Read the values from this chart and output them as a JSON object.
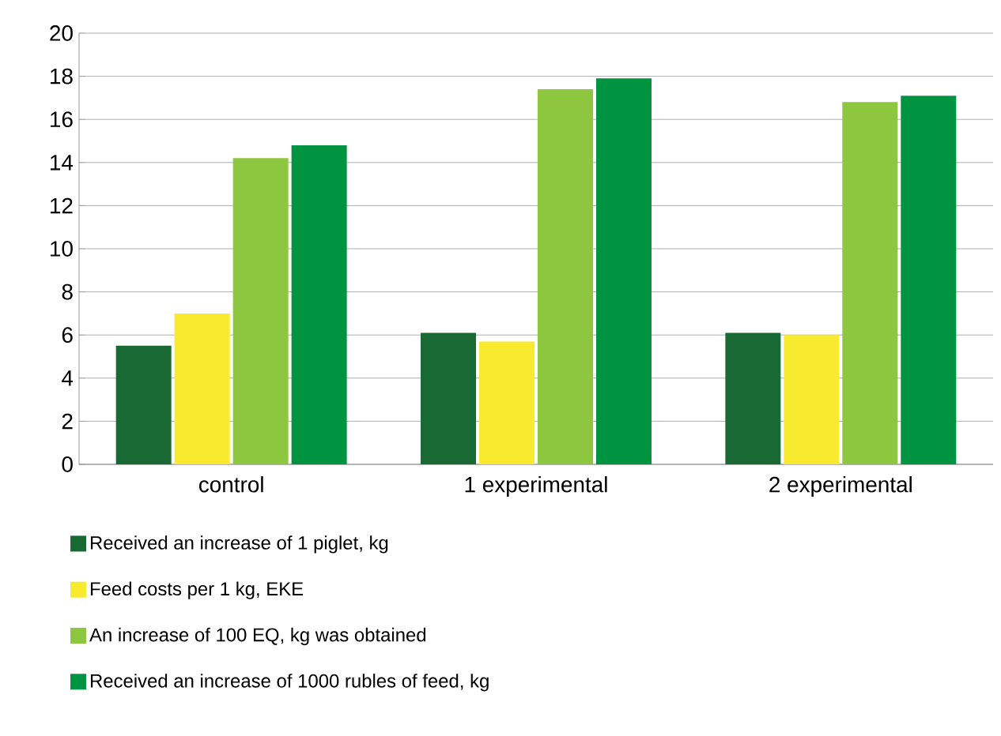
{
  "chart_data": {
    "type": "bar",
    "categories": [
      "control",
      "1 experimental",
      "2 experimental"
    ],
    "series": [
      {
        "name": "Received an increase of 1 piglet, kg",
        "color": "#186934",
        "values": [
          5.5,
          6.1,
          6.1
        ]
      },
      {
        "name": "Feed costs per 1 kg, EKE",
        "color": "#f7ea2f",
        "values": [
          7.0,
          5.7,
          6.0
        ]
      },
      {
        "name": "An increase of 100 EQ, kg was obtained",
        "color": "#8dc63f",
        "values": [
          14.2,
          17.4,
          16.8
        ]
      },
      {
        "name": "Received an increase of 1000 rubles of feed, kg",
        "color": "#009340",
        "values": [
          14.8,
          17.9,
          17.1
        ]
      }
    ],
    "ylim": [
      0,
      20
    ],
    "yticks": [
      0,
      2,
      4,
      6,
      8,
      10,
      12,
      14,
      16,
      18,
      20
    ],
    "grid": "y",
    "legend": "bottom"
  }
}
